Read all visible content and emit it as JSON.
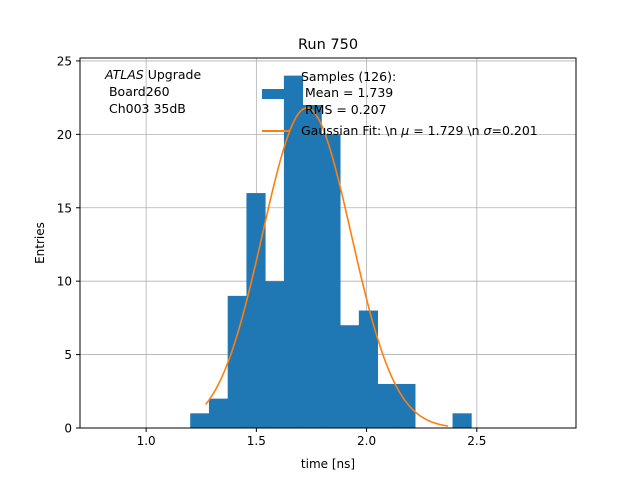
{
  "chart_data": {
    "type": "bar",
    "title": "Run 750",
    "xlabel": "time [ns]",
    "ylabel": "Entries",
    "xlim": [
      0.7,
      2.95
    ],
    "ylim": [
      0,
      25.2
    ],
    "grid": true,
    "x_ticks": [
      1.0,
      1.5,
      2.0,
      2.5
    ],
    "x_tick_labels": [
      "1.0",
      "1.5",
      "2.0",
      "2.5"
    ],
    "y_ticks": [
      0,
      5,
      10,
      15,
      20,
      25
    ],
    "y_tick_labels": [
      "0",
      "5",
      "10",
      "15",
      "20",
      "25"
    ],
    "histogram": {
      "bin_edges": [
        1.2,
        1.285,
        1.37,
        1.455,
        1.54,
        1.625,
        1.71,
        1.795,
        1.88,
        1.965,
        2.05,
        2.135,
        2.22,
        2.305,
        2.39,
        2.475
      ],
      "counts": [
        1,
        2,
        9,
        16,
        10,
        24,
        22,
        20,
        7,
        8,
        3,
        3,
        0,
        0,
        1
      ],
      "color": "#1f77b4"
    },
    "fit": {
      "name": "Gaussian Fit: \\n $\\mu$ = 1.729 \\n $\\sigma$=0.201",
      "label_parts": [
        "Gaussian Fit: \\n ",
        "μ",
        " = 1.729 \\n ",
        "σ",
        "=0.201"
      ],
      "mean": 1.729,
      "sigma": 0.201,
      "amplitude": 21.8,
      "x_range": [
        1.27,
        2.37
      ],
      "color": "#ff7f0e"
    },
    "legend": {
      "position": "top-center",
      "samples_lines": [
        "Samples (126):",
        " Mean = 1.739",
        " RMS = 0.207"
      ]
    },
    "annotation": {
      "position": "top-left",
      "lines": [
        {
          "italic": "ATLAS",
          "rest": " Upgrade"
        },
        {
          "italic": "",
          "rest": " Board260"
        },
        {
          "italic": "",
          "rest": " Ch003 35dB"
        }
      ]
    }
  }
}
